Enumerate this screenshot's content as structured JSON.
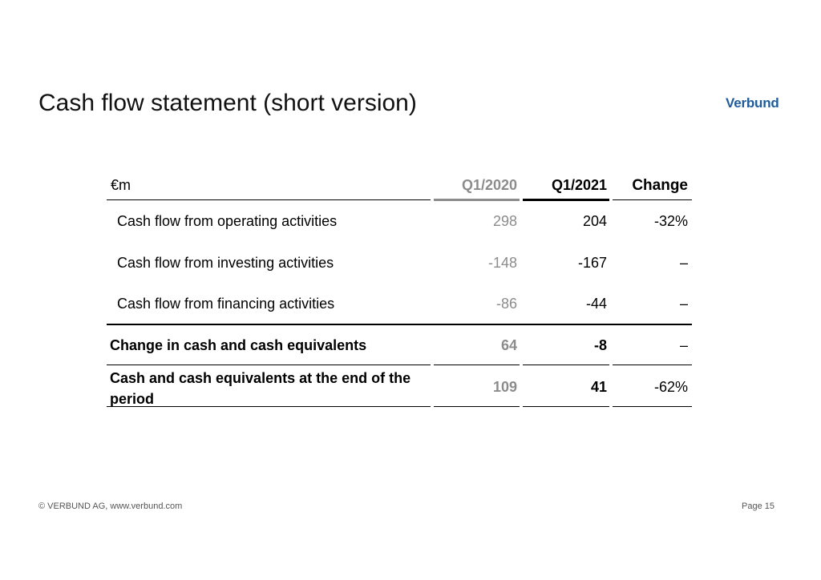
{
  "header": {
    "title": "Cash flow statement (short version)",
    "logo": "Verbund"
  },
  "table": {
    "unit_label": "€m",
    "columns": [
      "Q1/2020",
      "Q1/2021",
      "Change"
    ],
    "rows": [
      {
        "label": "Cash flow from operating activities",
        "q1_2020": "298",
        "q1_2021": "204",
        "change": "-32%"
      },
      {
        "label": "Cash flow from investing activities",
        "q1_2020": "-148",
        "q1_2021": "-167",
        "change": "–"
      },
      {
        "label": "Cash flow from financing activities",
        "q1_2020": "-86",
        "q1_2021": "-44",
        "change": "–"
      },
      {
        "label": "Change in cash and cash equivalents",
        "q1_2020": "64",
        "q1_2021": "-8",
        "change": "–"
      },
      {
        "label": "Cash and cash equivalents at the end of the period",
        "q1_2020": "109",
        "q1_2021": "41",
        "change": "-62%"
      }
    ]
  },
  "footer": {
    "copyright": "© VERBUND AG, www.verbund.com",
    "page": "Page 15"
  }
}
